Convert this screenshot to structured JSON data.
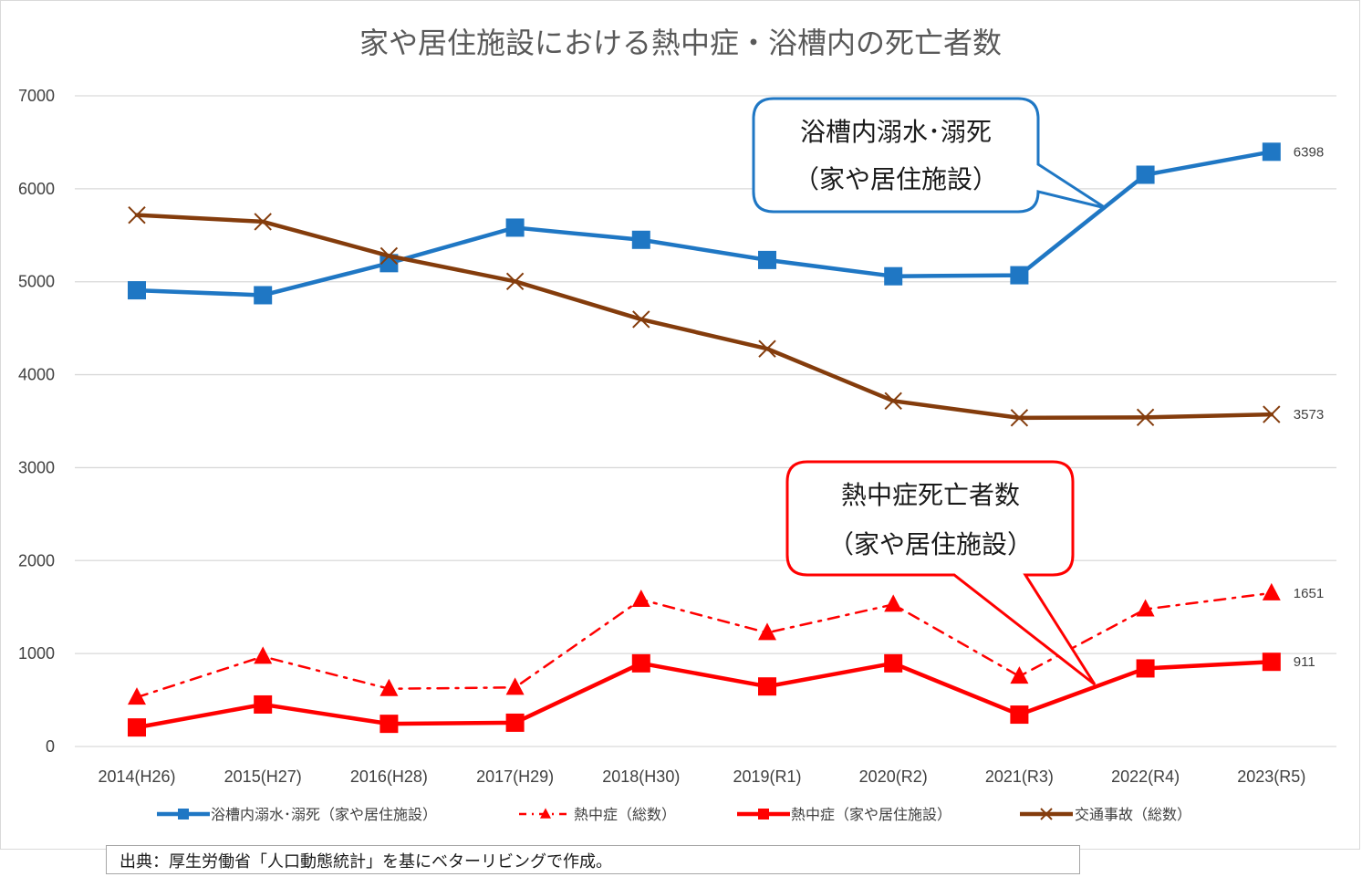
{
  "chart_data": {
    "type": "line",
    "title": "家や居住施設における熱中症・浴槽内の死亡者数",
    "categories": [
      "2014(H26)",
      "2015(H27)",
      "2016(H28)",
      "2017(H29)",
      "2018(H30)",
      "2019(R1)",
      "2020(R2)",
      "2021(R3)",
      "2022(R4)",
      "2023(R5)"
    ],
    "ylim": [
      0,
      7000
    ],
    "yticks": [
      "0",
      "1000",
      "2000",
      "3000",
      "4000",
      "5000",
      "6000",
      "7000"
    ],
    "grid": true,
    "legend_position": "bottom",
    "series": [
      {
        "name": "浴槽内溺水･溺死（家や居住施設）",
        "color": "#1f77c4",
        "marker": "square",
        "dash": "solid",
        "values": [
          4908,
          4855,
          5200,
          5582,
          5451,
          5234,
          5059,
          5070,
          6151,
          6398
        ],
        "end_label": "6398"
      },
      {
        "name": "熱中症（総数）",
        "color": "#ff0000",
        "marker": "triangle",
        "dash": "dashdot",
        "values": [
          529,
          968,
          621,
          635,
          1581,
          1224,
          1528,
          755,
          1477,
          1651
        ],
        "end_label": "1651"
      },
      {
        "name": "熱中症（家や居住施設）",
        "color": "#ff0000",
        "marker": "square",
        "dash": "solid",
        "values": [
          205,
          452,
          244,
          256,
          895,
          646,
          895,
          343,
          840,
          911
        ],
        "end_label": "911"
      },
      {
        "name": "交通事故（総数）",
        "color": "#843c0c",
        "marker": "x",
        "dash": "solid",
        "values": [
          5717,
          5646,
          5278,
          5004,
          4595,
          4279,
          3718,
          3536,
          3541,
          3573
        ],
        "end_label": "3573"
      }
    ],
    "callouts": [
      {
        "lines": [
          "浴槽内溺水･溺死",
          "（家や居住施設）"
        ],
        "color": "#1f77c4"
      },
      {
        "lines": [
          "熱中症死亡者数",
          "（家や居住施設）"
        ],
        "color": "#ff0000"
      }
    ]
  },
  "source": "出典：厚生労働省「人口動態統計」を基にベターリビングで作成。"
}
